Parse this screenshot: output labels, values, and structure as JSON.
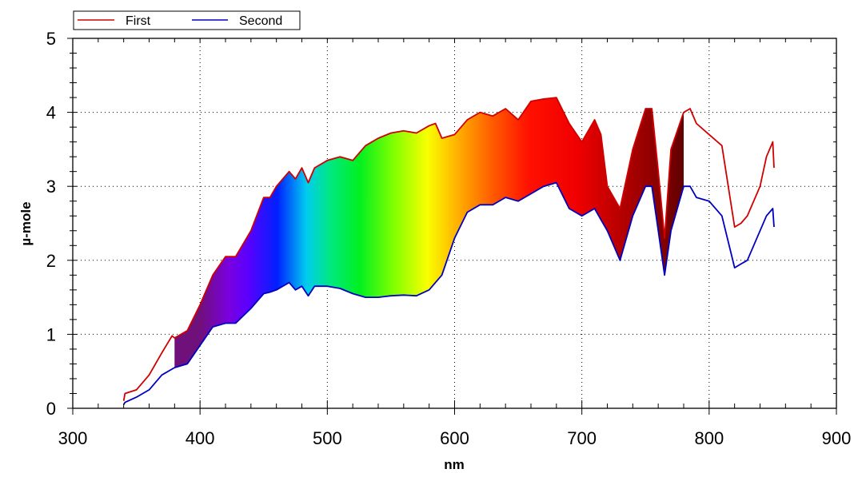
{
  "chart_data": {
    "type": "line",
    "title": "",
    "xlabel": "nm",
    "ylabel": "µ-mole",
    "xlim": [
      300,
      900
    ],
    "ylim": [
      0,
      5
    ],
    "xticks": [
      300,
      400,
      500,
      600,
      700,
      800,
      900
    ],
    "yticks": [
      0,
      1,
      2,
      3,
      4,
      5
    ],
    "grid": "dotted",
    "legend": {
      "position": "top-left",
      "entries": [
        "First",
        "Second"
      ]
    },
    "fill_between": {
      "from": 380,
      "to": 780,
      "style": "visible-spectrum gradient"
    },
    "series": [
      {
        "name": "First",
        "color": "#d00000",
        "x": [
          340,
          341,
          350,
          360,
          370,
          378,
          380,
          390,
          400,
          410,
          420,
          428,
          440,
          450,
          455,
          460,
          470,
          475,
          480,
          485,
          490,
          500,
          510,
          520,
          530,
          540,
          550,
          560,
          570,
          580,
          585,
          590,
          600,
          610,
          620,
          630,
          640,
          650,
          660,
          670,
          680,
          690,
          700,
          710,
          715,
          720,
          730,
          740,
          750,
          755,
          760,
          765,
          770,
          780,
          785,
          790,
          800,
          810,
          820,
          825,
          830,
          840,
          845,
          850,
          851
        ],
        "values": [
          0.1,
          0.2,
          0.25,
          0.45,
          0.75,
          0.98,
          0.95,
          1.05,
          1.4,
          1.8,
          2.05,
          2.05,
          2.4,
          2.85,
          2.85,
          3.0,
          3.2,
          3.1,
          3.25,
          3.05,
          3.25,
          3.35,
          3.4,
          3.35,
          3.55,
          3.65,
          3.72,
          3.75,
          3.72,
          3.82,
          3.85,
          3.65,
          3.7,
          3.9,
          4.0,
          3.95,
          4.05,
          3.9,
          4.15,
          4.18,
          4.2,
          3.85,
          3.6,
          3.9,
          3.7,
          3.0,
          2.7,
          3.5,
          4.05,
          4.05,
          3.2,
          2.3,
          3.5,
          4.0,
          4.05,
          3.85,
          3.7,
          3.55,
          2.45,
          2.5,
          2.6,
          3.0,
          3.4,
          3.6,
          3.25
        ]
      },
      {
        "name": "Second",
        "color": "#0000c0",
        "x": [
          340,
          341,
          350,
          360,
          370,
          378,
          380,
          390,
          400,
          410,
          420,
          428,
          440,
          450,
          455,
          460,
          470,
          475,
          480,
          485,
          490,
          500,
          510,
          520,
          530,
          540,
          550,
          560,
          570,
          580,
          585,
          590,
          600,
          610,
          620,
          630,
          640,
          650,
          660,
          670,
          680,
          690,
          700,
          710,
          715,
          720,
          730,
          740,
          750,
          755,
          760,
          765,
          770,
          780,
          785,
          790,
          800,
          810,
          820,
          825,
          830,
          840,
          845,
          850,
          851
        ],
        "values": [
          0.05,
          0.08,
          0.15,
          0.25,
          0.45,
          0.53,
          0.55,
          0.6,
          0.85,
          1.1,
          1.15,
          1.15,
          1.35,
          1.55,
          1.57,
          1.6,
          1.7,
          1.6,
          1.65,
          1.52,
          1.65,
          1.65,
          1.62,
          1.55,
          1.5,
          1.5,
          1.52,
          1.53,
          1.52,
          1.6,
          1.7,
          1.8,
          2.3,
          2.65,
          2.75,
          2.75,
          2.85,
          2.8,
          2.9,
          3.0,
          3.05,
          2.7,
          2.6,
          2.7,
          2.55,
          2.4,
          2.0,
          2.6,
          3.0,
          3.0,
          2.4,
          1.8,
          2.4,
          3.0,
          3.0,
          2.85,
          2.8,
          2.6,
          1.9,
          1.95,
          2.0,
          2.4,
          2.6,
          2.7,
          2.45
        ]
      }
    ]
  },
  "legend": {
    "first_label": "First",
    "second_label": "Second",
    "first_color": "#d00000",
    "second_color": "#0000c0"
  },
  "axes": {
    "xlabel": "nm",
    "ylabel": "µ-mole",
    "xtick_labels": [
      "300",
      "400",
      "500",
      "600",
      "700",
      "800",
      "900"
    ],
    "ytick_labels": [
      "0",
      "1",
      "2",
      "3",
      "4",
      "5"
    ]
  }
}
